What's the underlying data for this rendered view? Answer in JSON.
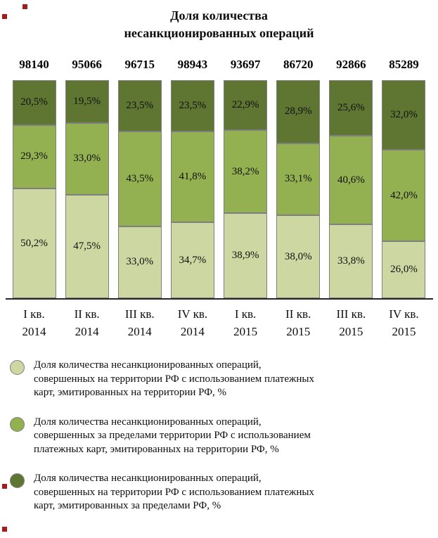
{
  "header": {
    "title_line1": "Доля количества",
    "title_line2": "несанкционированных операций"
  },
  "colors": {
    "light_green": "#ccd7a2",
    "medium_green": "#93b150",
    "dark_green": "#5e7631",
    "bar_border": "#7f7f7f",
    "axis_line": "#262626",
    "margin_mark_red": "#a21c1c"
  },
  "chart_data": {
    "type": "bar",
    "stacked": true,
    "title": "Доля количества несанкционированных операций",
    "ylim": [
      0,
      100
    ],
    "legend_position": "bottom",
    "categories": [
      {
        "quarter": "I кв.",
        "year": "2014"
      },
      {
        "quarter": "II кв.",
        "year": "2014"
      },
      {
        "quarter": "III кв.",
        "year": "2014"
      },
      {
        "quarter": "IV кв.",
        "year": "2014"
      },
      {
        "quarter": "I кв.",
        "year": "2015"
      },
      {
        "quarter": "II кв.",
        "year": "2015"
      },
      {
        "quarter": "III кв.",
        "year": "2015"
      },
      {
        "quarter": "IV кв.",
        "year": "2015"
      }
    ],
    "totals": [
      "98140",
      "95066",
      "96715",
      "98943",
      "93697",
      "86720",
      "92866",
      "85289"
    ],
    "series": [
      {
        "name": "Доля количества несанкционированных операций, совершенных на территории РФ с использованием платежных карт, эмитированных на территории РФ, %",
        "color": "#ccd7a2",
        "values": [
          50.2,
          47.5,
          33.0,
          34.7,
          38.9,
          38.0,
          33.8,
          26.0
        ],
        "labels": [
          "50,2%",
          "47,5%",
          "33,0%",
          "34,7%",
          "38,9%",
          "38,0%",
          "33,8%",
          "26,0%"
        ]
      },
      {
        "name": "Доля количества несанкционированных операций, совершенных за пределами территории РФ с использованием платежных карт, эмитированных на территории РФ, %",
        "color": "#93b150",
        "values": [
          29.3,
          33.0,
          43.5,
          41.8,
          38.2,
          33.1,
          40.6,
          42.0
        ],
        "labels": [
          "29,3%",
          "33,0%",
          "43,5%",
          "41,8%",
          "38,2%",
          "33,1%",
          "40,6%",
          "42,0%"
        ]
      },
      {
        "name": "Доля количества несанкционированных операций, совершенных на территории РФ с использованием платежных карт, эмитированных за пределами РФ, %",
        "color": "#5e7631",
        "values": [
          20.5,
          19.5,
          23.5,
          23.5,
          22.9,
          28.9,
          25.6,
          32.0
        ],
        "labels": [
          "20,5%",
          "19,5%",
          "23,5%",
          "23,5%",
          "22,9%",
          "28,9%",
          "25,6%",
          "32,0%"
        ]
      }
    ]
  }
}
